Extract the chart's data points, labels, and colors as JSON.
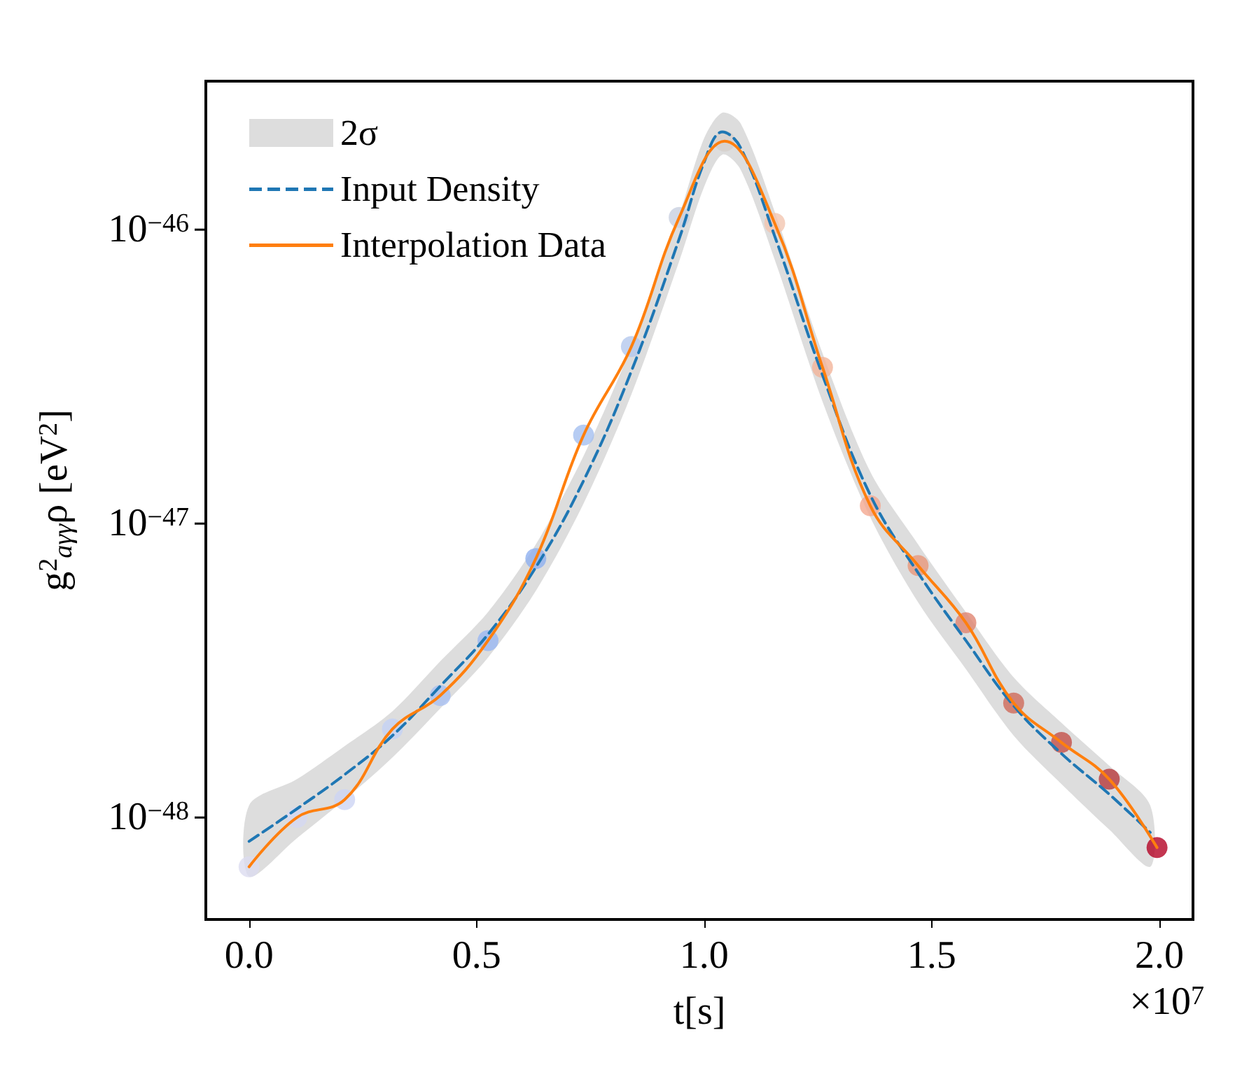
{
  "chart_data": {
    "type": "line",
    "xlabel": "t[s]",
    "ylabel": "g$^{2}$$_{aγγ}$ρ [eV$^{2}$]",
    "annotations": [
      "×10$^{7}$"
    ],
    "log": "y",
    "grid": false,
    "legend": "top left",
    "xlim": [
      -0.095,
      2.074
    ],
    "xticks": [
      {
        "value": 0,
        "label": "0.0"
      },
      0.5,
      {
        "value": 1,
        "label": "1.0"
      },
      1.5,
      {
        "value": 2,
        "label": "2.0"
      }
    ],
    "ylim": [
      4.5e-49,
      3.2e-46
    ],
    "yticks": [
      {
        "value": 1e-48,
        "label": "10$^{−48}$"
      },
      {
        "value": 1e-47,
        "label": "10$^{−47}$"
      },
      {
        "value": 1e-46,
        "label": "10$^{−46}$"
      }
    ],
    "series": [
      {
        "name": "2σ",
        "type": "area",
        "color": "#dddddd",
        "x": [
          0,
          0.105,
          0.21,
          0.315,
          0.42,
          0.525,
          0.63,
          0.735,
          0.84,
          0.945,
          1.0,
          1.04,
          1.08,
          1.155,
          1.26,
          1.365,
          1.47,
          1.575,
          1.68,
          1.785,
          1.89,
          1.98
        ],
        "values": [
          null,
          null,
          null,
          null,
          null,
          null,
          null,
          null,
          null,
          null,
          null,
          null,
          null,
          null,
          null,
          null,
          null,
          null,
          null,
          null,
          null,
          null
        ],
        "lower": [
          6.3e-49,
          8.5e-49,
          1.15e-48,
          1.6e-48,
          2.35e-48,
          3.5e-48,
          5.9e-48,
          1.17e-47,
          2.75e-47,
          7.8e-47,
          1.4e-46,
          1.8e-46,
          1.6e-46,
          7.9e-47,
          2.6e-47,
          1.05e-47,
          5.4e-48,
          3.2e-48,
          1.9e-48,
          1.3e-48,
          9.1e-49,
          6.8e-49
        ],
        "upper": [
          1.1e-48,
          1.35e-48,
          1.75e-48,
          2.3e-48,
          3.4e-48,
          5e-48,
          8.5e-48,
          1.7e-47,
          4e-47,
          1.12e-46,
          2.05e-46,
          2.5e-46,
          2.3e-46,
          1.15e-46,
          3.8e-47,
          1.5e-47,
          8.5e-48,
          5e-48,
          3e-48,
          2.1e-48,
          1.5e-48,
          1.1e-48
        ]
      },
      {
        "name": "Input Density",
        "line_style": "dashed",
        "color": "#1f77b4",
        "x": [
          0,
          0.105,
          0.21,
          0.315,
          0.42,
          0.525,
          0.63,
          0.735,
          0.84,
          0.945,
          1.0,
          1.04,
          1.08,
          1.155,
          1.26,
          1.365,
          1.47,
          1.575,
          1.68,
          1.785,
          1.89,
          1.98
        ],
        "values": [
          8.3e-49,
          1.07e-48,
          1.4e-48,
          1.9e-48,
          2.8e-48,
          4.2e-48,
          7.1e-48,
          1.4e-47,
          3.3e-47,
          9.3e-47,
          1.7e-46,
          2.15e-46,
          1.9e-46,
          9.5e-47,
          3.2e-47,
          1.25e-47,
          6.8e-48,
          4e-48,
          2.4e-48,
          1.65e-48,
          1.2e-48,
          8.9e-49
        ]
      },
      {
        "name": "Interpolation Data",
        "line_style": "solid",
        "color": "#ff7f0e",
        "x": [
          0,
          0.105,
          0.21,
          0.315,
          0.42,
          0.525,
          0.63,
          0.735,
          0.84,
          0.945,
          1.045,
          1.155,
          1.26,
          1.365,
          1.47,
          1.575,
          1.68,
          1.785,
          1.89,
          1.995
        ],
        "values": [
          6.8e-49,
          1e-48,
          1.15e-48,
          2e-48,
          2.6e-48,
          4e-48,
          7.6e-48,
          2e-47,
          4e-47,
          1.1e-46,
          2e-46,
          1.05e-46,
          3.4e-47,
          1.15e-47,
          7.2e-48,
          4.6e-48,
          2.45e-48,
          1.8e-48,
          1.35e-48,
          7.9e-49
        ]
      },
      {
        "type": "scatter",
        "marker": "circle",
        "x": [
          0,
          0.105,
          0.21,
          0.315,
          0.42,
          0.525,
          0.63,
          0.735,
          0.84,
          0.945,
          1.045,
          1.155,
          1.26,
          1.365,
          1.47,
          1.575,
          1.68,
          1.785,
          1.89,
          1.995
        ],
        "values": [
          6.8e-49,
          1e-48,
          1.15e-48,
          2e-48,
          2.6e-48,
          4e-48,
          7.6e-48,
          2e-47,
          4e-47,
          1.1e-46,
          2e-46,
          1.05e-46,
          3.4e-47,
          1.15e-47,
          7.2e-48,
          4.6e-48,
          2.45e-48,
          1.8e-48,
          1.35e-48,
          7.9e-49
        ],
        "colors": [
          "#dcdcf0",
          "#d5d8f2",
          "#cdd5f4",
          "#c4d2f5",
          "#a9c0f2",
          "#9ab8f2",
          "#8eb0f0",
          "#a4bff0",
          "#b4c8ee",
          "#c8cfe0",
          "#d6cfcc",
          "#f3c6b0",
          "#f2b49a",
          "#f4a890",
          "#e8977a",
          "#e08570",
          "#d06a5a",
          "#c45048",
          "#b83a3c",
          "#b40426"
        ]
      }
    ]
  }
}
